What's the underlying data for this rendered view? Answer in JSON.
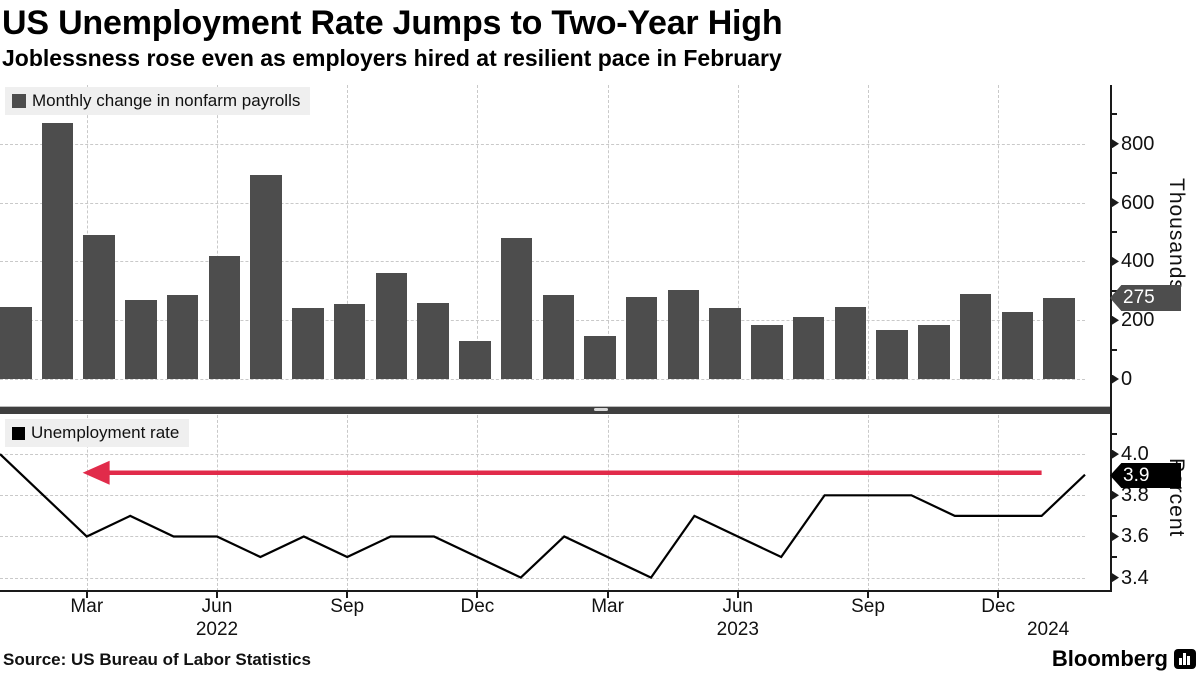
{
  "header": {
    "title": "US Unemployment Rate Jumps to Two-Year High",
    "subtitle": "Joblessness rose even as employers hired at resilient pace in February"
  },
  "top_chart": {
    "legend_label": "Monthly change in nonfarm payrolls",
    "unit_label": "Thousands",
    "value_tag": "275"
  },
  "bottom_chart": {
    "legend_label": "Unemployment rate",
    "unit_label": "Percent",
    "value_tag": "3.9"
  },
  "x_axis": {
    "quarter_tick_months": [
      2,
      5,
      8,
      11,
      14,
      17,
      20,
      23
    ],
    "tick_labels": [
      "Mar",
      "Jun",
      "Sep",
      "Dec",
      "Mar",
      "Jun",
      "Sep",
      "Dec"
    ],
    "year_labels": [
      {
        "label": "2022",
        "month": 5
      },
      {
        "label": "2023",
        "month": 17
      },
      {
        "label": "2024",
        "month": 24.15
      }
    ]
  },
  "annotation_arrow": {
    "y_value": 3.9,
    "from_month": 24.0,
    "to_month": 1.95,
    "color": "#e12b4a"
  },
  "chart_data": [
    {
      "type": "bar",
      "title": "Monthly change in nonfarm payrolls",
      "ylabel": "Thousands",
      "ylim": [
        0,
        1000
      ],
      "yticks": [
        0,
        200,
        400,
        600,
        800
      ],
      "yminors": [
        100,
        300,
        500,
        700,
        900
      ],
      "grid": "dashed",
      "categories": [
        "Jan 2022",
        "Feb 2022",
        "Mar 2022",
        "Apr 2022",
        "May 2022",
        "Jun 2022",
        "Jul 2022",
        "Aug 2022",
        "Sep 2022",
        "Oct 2022",
        "Nov 2022",
        "Dec 2022",
        "Jan 2023",
        "Feb 2023",
        "Mar 2023",
        "Apr 2023",
        "May 2023",
        "Jun 2023",
        "Jul 2023",
        "Aug 2023",
        "Sep 2023",
        "Oct 2023",
        "Nov 2023",
        "Dec 2023",
        "Jan 2024",
        "Feb 2024"
      ],
      "values": [
        245,
        870,
        490,
        270,
        285,
        420,
        695,
        240,
        255,
        360,
        260,
        130,
        480,
        287,
        146,
        278,
        303,
        240,
        184,
        210,
        246,
        165,
        182,
        290,
        229,
        275
      ],
      "last_value_tagged": 275
    },
    {
      "type": "line",
      "title": "Unemployment rate",
      "ylabel": "Percent",
      "ylim": [
        3.335,
        4.19
      ],
      "yticks": [
        3.4,
        3.6,
        3.8,
        4.0
      ],
      "yminors": [
        3.5,
        3.7,
        3.9,
        4.1
      ],
      "grid": "dashed",
      "categories": [
        "Jan 2022",
        "Feb 2022",
        "Mar 2022",
        "Apr 2022",
        "May 2022",
        "Jun 2022",
        "Jul 2022",
        "Aug 2022",
        "Sep 2022",
        "Oct 2022",
        "Nov 2022",
        "Dec 2022",
        "Jan 2023",
        "Feb 2023",
        "Mar 2023",
        "Apr 2023",
        "May 2023",
        "Jun 2023",
        "Jul 2023",
        "Aug 2023",
        "Sep 2023",
        "Oct 2023",
        "Nov 2023",
        "Dec 2023",
        "Jan 2024",
        "Feb 2024"
      ],
      "values": [
        4.0,
        3.8,
        3.6,
        3.7,
        3.6,
        3.6,
        3.5,
        3.6,
        3.5,
        3.6,
        3.6,
        3.5,
        3.4,
        3.6,
        3.5,
        3.4,
        3.7,
        3.6,
        3.5,
        3.8,
        3.8,
        3.8,
        3.7,
        3.7,
        3.7,
        3.9
      ],
      "last_value_tagged": 3.9
    }
  ],
  "source_line": {
    "label": "Source: US Bureau of Labor Statistics"
  },
  "branding": {
    "logo_text": "Bloomberg",
    "logo_icon": "bloomberg-chart-bubble-icon"
  },
  "colors": {
    "bar": "#4d4d4d",
    "line": "#000000",
    "arrow": "#e12b4a",
    "grid": "#c9c9c9",
    "legend_bg": "#efefef",
    "separator": "#3f3f3f",
    "tag_top_bg": "#4d4d4d",
    "tag_bottom_bg": "#000000",
    "text": "#111111"
  }
}
